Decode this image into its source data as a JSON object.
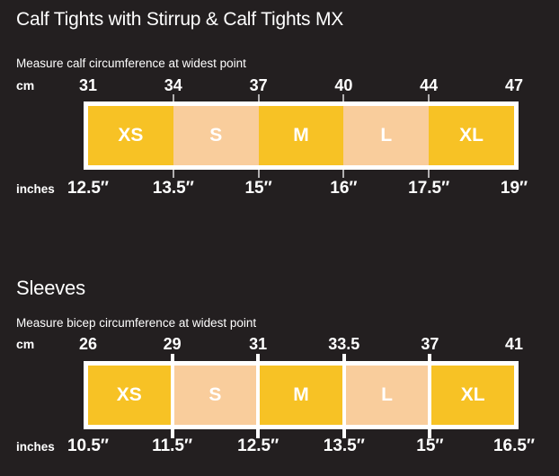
{
  "colors": {
    "background": "#231F20",
    "yellow": "#F7C225",
    "peach": "#F9CD9C",
    "frame_white": "#FFFFFF",
    "text": "#FFFFFF"
  },
  "charts": [
    {
      "title": "Calf Tights with Stirrup & Calf Tights MX",
      "subtitle": "Measure calf circumference at widest point",
      "top_unit": "cm",
      "bottom_unit": "inches",
      "top_values": [
        "31",
        "34",
        "37",
        "40",
        "44",
        "47"
      ],
      "bottom_values": [
        "12.5″",
        "13.5″",
        "15″",
        "16″",
        "17.5″",
        "19″"
      ],
      "sizes": [
        "XS",
        "S",
        "M",
        "L",
        "XL"
      ],
      "segment_colors": [
        "#F7C225",
        "#F9CD9C",
        "#F7C225",
        "#F9CD9C",
        "#F7C225"
      ],
      "divider": "thin"
    },
    {
      "title": "Sleeves",
      "subtitle": "Measure bicep circumference at widest point",
      "top_unit": "cm",
      "bottom_unit": "inches",
      "top_values": [
        "26",
        "29",
        "31",
        "33.5",
        "37",
        "41"
      ],
      "bottom_values": [
        "10.5″",
        "11.5″",
        "12.5″",
        "13.5″",
        "15″",
        "16.5″"
      ],
      "sizes": [
        "XS",
        "S",
        "M",
        "L",
        "XL"
      ],
      "segment_colors": [
        "#F7C225",
        "#F9CD9C",
        "#F7C225",
        "#F9CD9C",
        "#F7C225"
      ],
      "divider": "solid-white"
    }
  ],
  "chart_data": [
    {
      "type": "table",
      "title": "Calf Tights with Stirrup & Calf Tights MX",
      "subtitle": "Measure calf circumference at widest point",
      "sizes": [
        "XS",
        "S",
        "M",
        "L",
        "XL"
      ],
      "cm_boundaries": [
        31,
        34,
        37,
        40,
        44,
        47
      ],
      "inch_boundaries": [
        12.5,
        13.5,
        15,
        16,
        17.5,
        19
      ],
      "size_ranges_cm": {
        "XS": [
          31,
          34
        ],
        "S": [
          34,
          37
        ],
        "M": [
          37,
          40
        ],
        "L": [
          40,
          44
        ],
        "XL": [
          44,
          47
        ]
      },
      "size_ranges_inches": {
        "XS": [
          12.5,
          13.5
        ],
        "S": [
          13.5,
          15
        ],
        "M": [
          15,
          16
        ],
        "L": [
          16,
          17.5
        ],
        "XL": [
          17.5,
          19
        ]
      }
    },
    {
      "type": "table",
      "title": "Sleeves",
      "subtitle": "Measure bicep circumference at widest point",
      "sizes": [
        "XS",
        "S",
        "M",
        "L",
        "XL"
      ],
      "cm_boundaries": [
        26,
        29,
        31,
        33.5,
        37,
        41
      ],
      "inch_boundaries": [
        10.5,
        11.5,
        12.5,
        13.5,
        15,
        16.5
      ],
      "size_ranges_cm": {
        "XS": [
          26,
          29
        ],
        "S": [
          29,
          31
        ],
        "M": [
          31,
          33.5
        ],
        "L": [
          33.5,
          37
        ],
        "XL": [
          37,
          41
        ]
      },
      "size_ranges_inches": {
        "XS": [
          10.5,
          11.5
        ],
        "S": [
          11.5,
          12.5
        ],
        "M": [
          12.5,
          13.5
        ],
        "L": [
          13.5,
          15
        ],
        "XL": [
          15,
          16.5
        ]
      }
    }
  ]
}
